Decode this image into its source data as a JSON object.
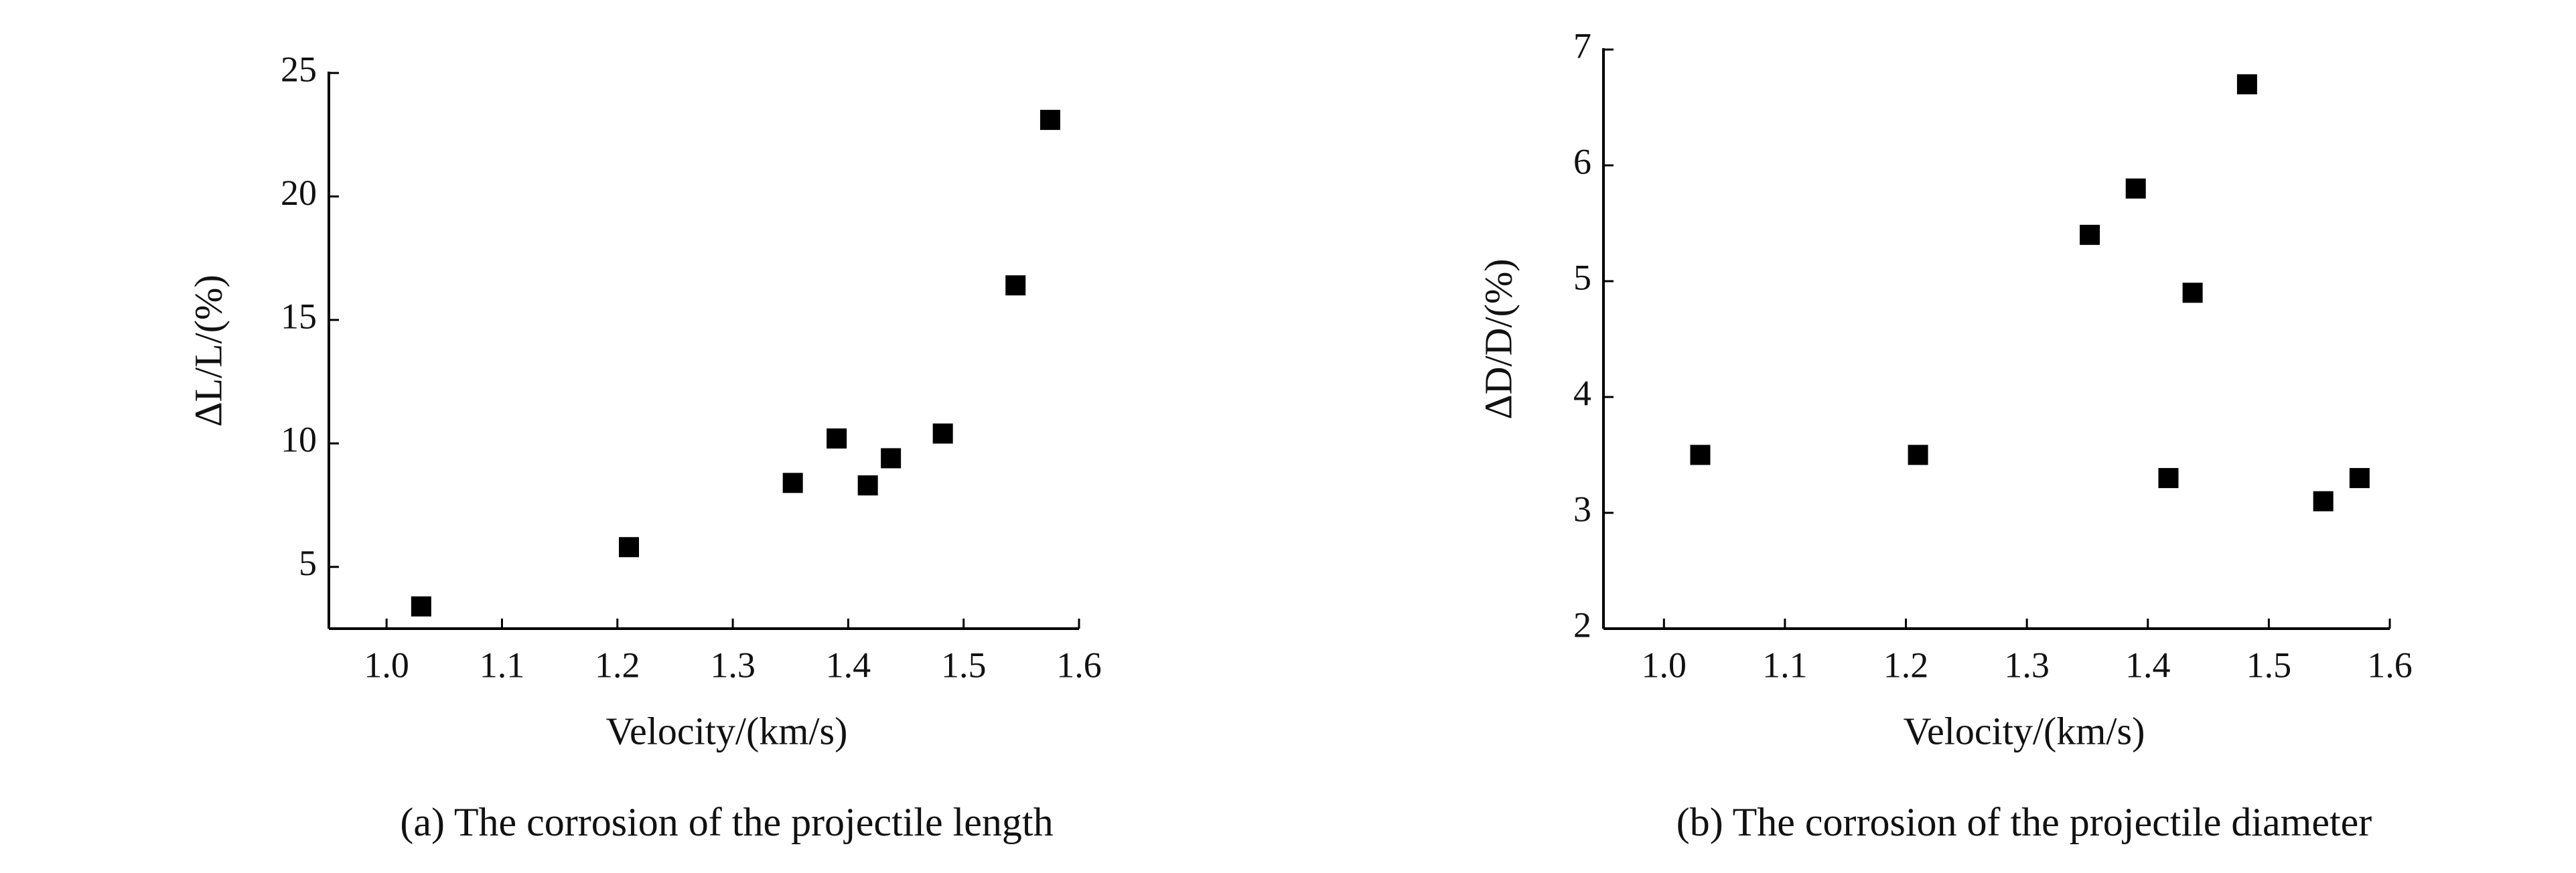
{
  "chart_data": [
    {
      "type": "scatter",
      "caption": "(a) The corrosion of the projectile length",
      "xlabel": "Velocity/(km/s)",
      "ylabel": "ΔL/L/(%)",
      "x": [
        1.03,
        1.21,
        1.352,
        1.39,
        1.417,
        1.437,
        1.482,
        1.545,
        1.575
      ],
      "values": [
        3.4,
        5.8,
        8.4,
        10.2,
        8.3,
        9.4,
        10.4,
        16.4,
        23.1
      ],
      "color": "#000000",
      "xlim": [
        0.95,
        1.6
      ],
      "xticks": [
        {
          "value": 1,
          "label": "1.0"
        },
        1.1,
        1.2,
        1.3,
        1.4,
        1.5,
        1.6
      ],
      "ylim": [
        2.5,
        25
      ],
      "yticks": [
        5,
        10,
        15,
        20,
        25
      ]
    },
    {
      "type": "scatter",
      "caption": "(b) The corrosion of the projectile diameter",
      "xlabel": "Velocity/(km/s)",
      "ylabel": "ΔD/D/(%)",
      "x": [
        1.03,
        1.21,
        1.352,
        1.39,
        1.417,
        1.437,
        1.482,
        1.545,
        1.575
      ],
      "values": [
        3.5,
        3.5,
        5.4,
        5.8,
        3.3,
        4.9,
        6.7,
        3.1,
        3.3
      ],
      "color": "#000000",
      "xlim": [
        0.95,
        1.6
      ],
      "xticks": [
        {
          "value": 1,
          "label": "1.0"
        },
        1.1,
        1.2,
        1.3,
        1.4,
        1.5,
        1.6
      ],
      "ylim": [
        2,
        7
      ],
      "yticks": [
        2,
        3,
        4,
        5,
        6,
        7
      ]
    }
  ]
}
